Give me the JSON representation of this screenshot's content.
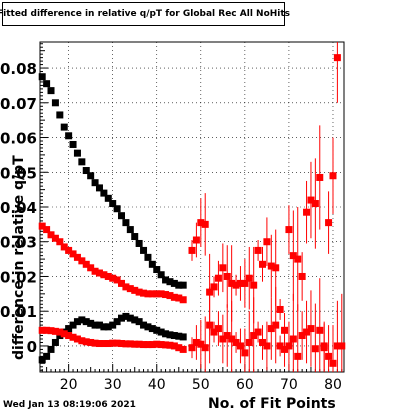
{
  "chart_data": {
    "type": "scatter",
    "title": "Fitted difference in relative q/pT  for Global Rec All NoHits",
    "xlabel": "No. of Fit Points",
    "ylabel": "difference in relative q/pT",
    "xlim": [
      13.5,
      82.5
    ],
    "ylim": [
      -0.0075,
      0.0875
    ],
    "x_ticks": [
      20,
      30,
      40,
      50,
      60,
      70,
      80
    ],
    "y_ticks": [
      0,
      0.01,
      0.02,
      0.03,
      0.04,
      0.05,
      0.06,
      0.07,
      0.08
    ],
    "y_tick_labels": [
      "0",
      "0.01",
      "0.02",
      "0.03",
      "0.04",
      "0.05",
      "0.06",
      "0.07",
      "0.08"
    ],
    "x_tick_labels": [
      "20",
      "30",
      "40",
      "50",
      "60",
      "70",
      "80"
    ],
    "grid": true,
    "series": [
      {
        "color": "#000000",
        "x": [
          14,
          15,
          16,
          17,
          18,
          19,
          20,
          21,
          22,
          23,
          24,
          25,
          26,
          27,
          28,
          29,
          30,
          31,
          32,
          33,
          34,
          35,
          36,
          37,
          38,
          39,
          40,
          41,
          42,
          43,
          44,
          45,
          46
        ],
        "y": [
          0.0775,
          0.0755,
          0.0735,
          0.07,
          0.0665,
          0.063,
          0.0605,
          0.058,
          0.0555,
          0.053,
          0.0505,
          0.049,
          0.047,
          0.0455,
          0.044,
          0.0425,
          0.041,
          0.0395,
          0.0375,
          0.0355,
          0.0335,
          0.0315,
          0.0295,
          0.0275,
          0.0255,
          0.0235,
          0.022,
          0.0205,
          0.019,
          0.0185,
          0.018,
          0.0175,
          0.0175
        ]
      },
      {
        "color": "#000000",
        "x": [
          14,
          15,
          16,
          17,
          18,
          19,
          20,
          21,
          22,
          23,
          24,
          25,
          26,
          27,
          28,
          29,
          30,
          31,
          32,
          33,
          34,
          35,
          36,
          37,
          38,
          39,
          40,
          41,
          42,
          43,
          44,
          45,
          46
        ],
        "y": [
          -0.004,
          -0.003,
          -0.001,
          0.001,
          0.003,
          0.004,
          0.005,
          0.006,
          0.007,
          0.0075,
          0.007,
          0.0065,
          0.006,
          0.006,
          0.0055,
          0.0055,
          0.006,
          0.007,
          0.008,
          0.0085,
          0.008,
          0.0075,
          0.007,
          0.006,
          0.0055,
          0.005,
          0.0045,
          0.004,
          0.0035,
          0.0032,
          0.003,
          0.0028,
          0.0026
        ]
      },
      {
        "color": "#ff0000",
        "x": [
          14,
          15,
          16,
          17,
          18,
          19,
          20,
          21,
          22,
          23,
          24,
          25,
          26,
          27,
          28,
          29,
          30,
          31,
          32,
          33,
          34,
          35,
          36,
          37,
          38,
          39,
          40,
          41,
          42,
          43,
          44,
          45,
          46
        ],
        "y": [
          0.0345,
          0.0335,
          0.032,
          0.031,
          0.03,
          0.0285,
          0.0275,
          0.0265,
          0.0255,
          0.0245,
          0.0235,
          0.0225,
          0.0215,
          0.021,
          0.0205,
          0.02,
          0.0195,
          0.019,
          0.018,
          0.017,
          0.0165,
          0.016,
          0.0155,
          0.0152,
          0.015,
          0.015,
          0.015,
          0.015,
          0.0148,
          0.0145,
          0.014,
          0.0138,
          0.0133
        ]
      },
      {
        "color": "#ff0000",
        "x": [
          14,
          15,
          16,
          17,
          18,
          19,
          20,
          21,
          22,
          23,
          24,
          25,
          26,
          27,
          28,
          29,
          30,
          31,
          32,
          33,
          34,
          35,
          36,
          37,
          38,
          39,
          40,
          41,
          42,
          43,
          44,
          45,
          46
        ],
        "y": [
          0.0045,
          0.0045,
          0.0044,
          0.0042,
          0.004,
          0.0035,
          0.003,
          0.0025,
          0.002,
          0.0015,
          0.0012,
          0.001,
          0.0008,
          0.0007,
          0.0007,
          0.0007,
          0.0008,
          0.0008,
          0.0007,
          0.0006,
          0.0006,
          0.0005,
          0.0005,
          0.0004,
          0.0004,
          0.0004,
          0.0005,
          0.0004,
          0.0003,
          0.0002,
          0.0,
          -0.0005,
          -0.001
        ]
      },
      {
        "color": "#ff0000",
        "x": [
          48,
          49,
          50,
          51,
          52,
          53,
          54,
          55,
          56,
          57,
          58,
          59,
          60,
          61,
          62,
          63,
          64,
          65,
          66,
          67,
          68,
          69,
          70,
          71,
          72,
          73,
          74,
          75,
          76,
          77,
          78,
          79,
          80,
          81,
          82
        ],
        "y": [
          0.0275,
          0.0305,
          0.0355,
          0.035,
          0.0155,
          0.017,
          0.0195,
          0.0225,
          0.02,
          0.018,
          0.0175,
          0.018,
          0.018,
          0.0195,
          0.0175,
          0.0275,
          0.0235,
          0.03,
          0.023,
          0.0225,
          0.0105,
          0.0045,
          0.0335,
          0.026,
          0.025,
          0.02,
          0.0385,
          0.042,
          0.041,
          0.0485,
          0.0,
          0.0355,
          0.049,
          0.083,
          0.0
        ]
      },
      {
        "color": "#ff0000",
        "x": [
          48,
          49,
          50,
          51,
          52,
          53,
          54,
          55,
          56,
          57,
          58,
          59,
          60,
          61,
          62,
          63,
          64,
          65,
          66,
          67,
          68,
          69,
          70,
          71,
          72,
          73,
          74,
          75,
          76,
          77,
          78,
          79,
          80,
          81
        ],
        "y": [
          -0.0005,
          0.001,
          0.0005,
          -0.0005,
          0.006,
          0.004,
          0.005,
          0.002,
          0.003,
          0.002,
          0.001,
          0.0,
          -0.002,
          0.001,
          0.003,
          0.004,
          0.001,
          0.0,
          0.005,
          0.006,
          0.0,
          -0.001,
          0.0,
          0.002,
          -0.003,
          0.003,
          0.004,
          0.005,
          -0.0008,
          0.0045,
          -0.0005,
          -0.003,
          -0.005,
          0.0
        ]
      }
    ]
  },
  "footer": {
    "timestamp": "Wed Jan 13 08:19:06 2021"
  }
}
